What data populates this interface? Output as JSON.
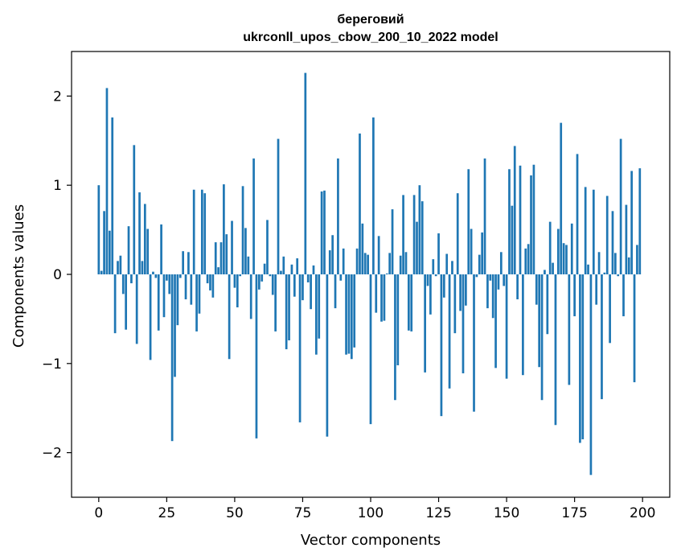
{
  "chart_data": {
    "type": "bar",
    "title_line1": "береговий",
    "title_line2": "ukrconll_upos_cbow_200_10_2022 model",
    "xlabel": "Vector components",
    "ylabel": "Components values",
    "xlim": [
      -10,
      210
    ],
    "ylim": [
      -2.5,
      2.5
    ],
    "xticks": [
      0,
      25,
      50,
      75,
      100,
      125,
      150,
      175,
      200
    ],
    "xtick_labels": [
      "0",
      "25",
      "50",
      "75",
      "100",
      "125",
      "150",
      "175",
      "200"
    ],
    "yticks": [
      -2,
      -1,
      0,
      1,
      2
    ],
    "ytick_labels": [
      "−2",
      "−1",
      "0",
      "1",
      "2"
    ],
    "bar_color": "#1f77b4",
    "values": [
      1.0,
      0.04,
      0.71,
      2.09,
      0.49,
      1.76,
      -0.66,
      0.15,
      0.21,
      -0.22,
      -0.62,
      0.54,
      -0.1,
      1.45,
      -0.78,
      0.92,
      0.15,
      0.79,
      0.51,
      -0.96,
      0.03,
      -0.04,
      -0.63,
      0.56,
      -0.48,
      -0.07,
      -0.22,
      -1.87,
      -1.15,
      -0.57,
      -0.04,
      0.26,
      -0.28,
      0.25,
      -0.34,
      0.95,
      -0.64,
      -0.44,
      0.95,
      0.91,
      -0.1,
      -0.18,
      -0.26,
      0.36,
      0.08,
      0.36,
      1.01,
      0.45,
      -0.95,
      0.6,
      -0.15,
      -0.37,
      -0.02,
      0.99,
      0.52,
      0.2,
      -0.5,
      1.3,
      -1.84,
      -0.17,
      -0.08,
      0.12,
      0.61,
      -0.02,
      -0.23,
      -0.64,
      1.52,
      0.04,
      0.2,
      -0.84,
      -0.74,
      0.11,
      -0.25,
      0.18,
      -1.66,
      -0.29,
      2.26,
      -0.09,
      -0.39,
      0.1,
      -0.9,
      -0.72,
      0.93,
      0.94,
      -1.82,
      0.27,
      0.44,
      -0.38,
      1.3,
      -0.07,
      0.29,
      -0.9,
      -0.89,
      -0.95,
      -0.82,
      0.29,
      1.58,
      0.57,
      0.24,
      0.22,
      -1.68,
      1.76,
      -0.43,
      0.43,
      -0.53,
      -0.52,
      0.01,
      0.24,
      0.73,
      -1.41,
      -1.02,
      0.21,
      0.89,
      0.25,
      -0.63,
      -0.64,
      0.89,
      0.59,
      1.0,
      0.82,
      -1.1,
      -0.13,
      -0.45,
      0.17,
      -0.02,
      0.46,
      -1.59,
      -0.26,
      0.23,
      -1.28,
      0.15,
      -0.66,
      0.91,
      -0.41,
      -1.11,
      -0.35,
      1.18,
      0.51,
      -1.54,
      -0.03,
      0.22,
      0.47,
      1.3,
      -0.38,
      -0.07,
      -0.49,
      -1.05,
      -0.17,
      0.25,
      -0.13,
      -1.17,
      1.18,
      0.77,
      1.44,
      -0.28,
      1.22,
      -1.13,
      0.29,
      0.34,
      1.11,
      1.23,
      -0.34,
      -1.04,
      -1.41,
      0.05,
      -0.67,
      0.59,
      0.13,
      -1.69,
      0.51,
      1.7,
      0.35,
      0.33,
      -1.24,
      0.57,
      -0.47,
      1.35,
      -1.89,
      -1.85,
      0.98,
      0.11,
      -2.25,
      0.95,
      -0.34,
      0.25,
      -1.4,
      0.02,
      0.88,
      -0.77,
      0.71,
      0.24,
      -0.02,
      1.52,
      -0.47,
      0.78,
      0.19,
      1.16,
      -1.21,
      0.33,
      1.19
    ]
  }
}
